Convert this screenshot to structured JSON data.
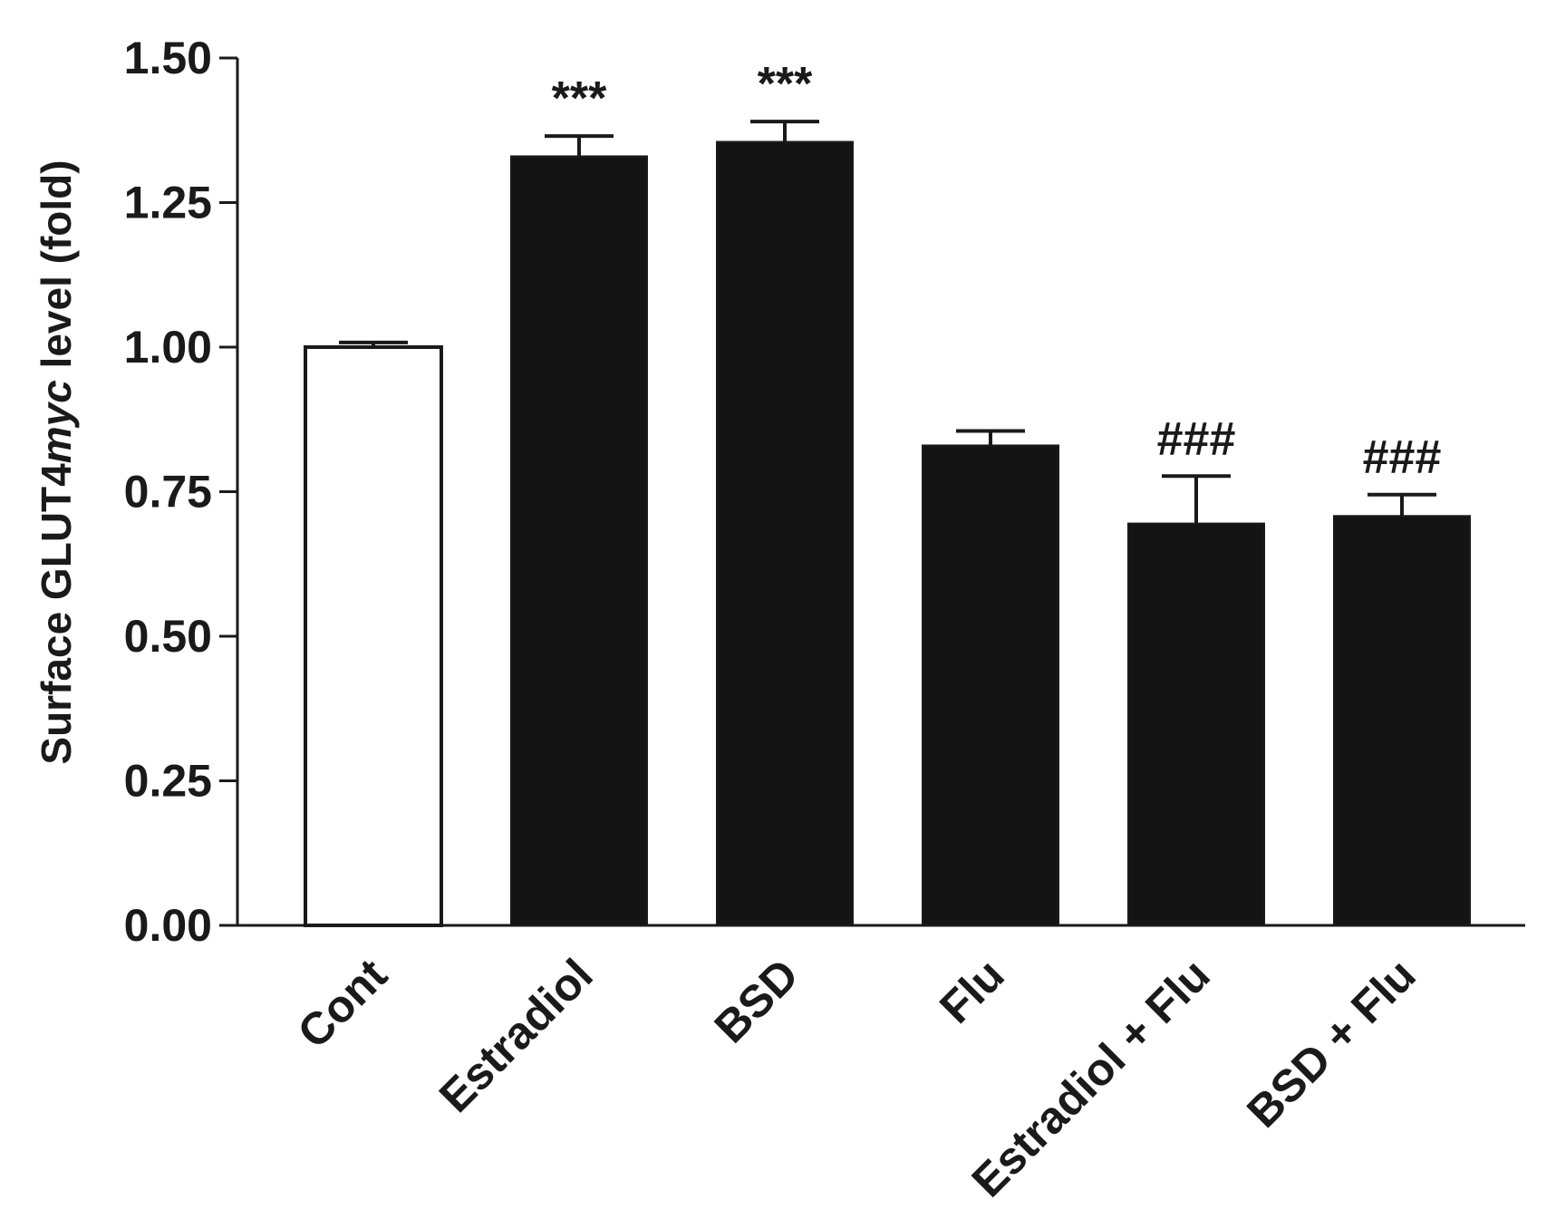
{
  "chart_data": {
    "type": "bar",
    "title": "",
    "xlabel": "",
    "ylabel_parts": [
      "Surface GLUT4",
      "myc",
      " level (fold)"
    ],
    "ylim": [
      0,
      1.5
    ],
    "yticks": [
      "0.00",
      "0.25",
      "0.50",
      "0.75",
      "1.00",
      "1.25",
      "1.50"
    ],
    "categories": [
      "Cont",
      "Estradiol",
      "BSD",
      "Flu",
      "Estradiol + Flu",
      "BSD + Flu"
    ],
    "values": [
      1.0,
      1.33,
      1.355,
      0.83,
      0.695,
      0.708
    ],
    "errors": [
      0.008,
      0.035,
      0.035,
      0.025,
      0.082,
      0.037
    ],
    "fills": [
      "#ffffff",
      "#141414",
      "#141414",
      "#141414",
      "#141414",
      "#141414"
    ],
    "annotations": [
      "",
      "***",
      "***",
      "",
      "###",
      "###"
    ],
    "grid": false
  }
}
